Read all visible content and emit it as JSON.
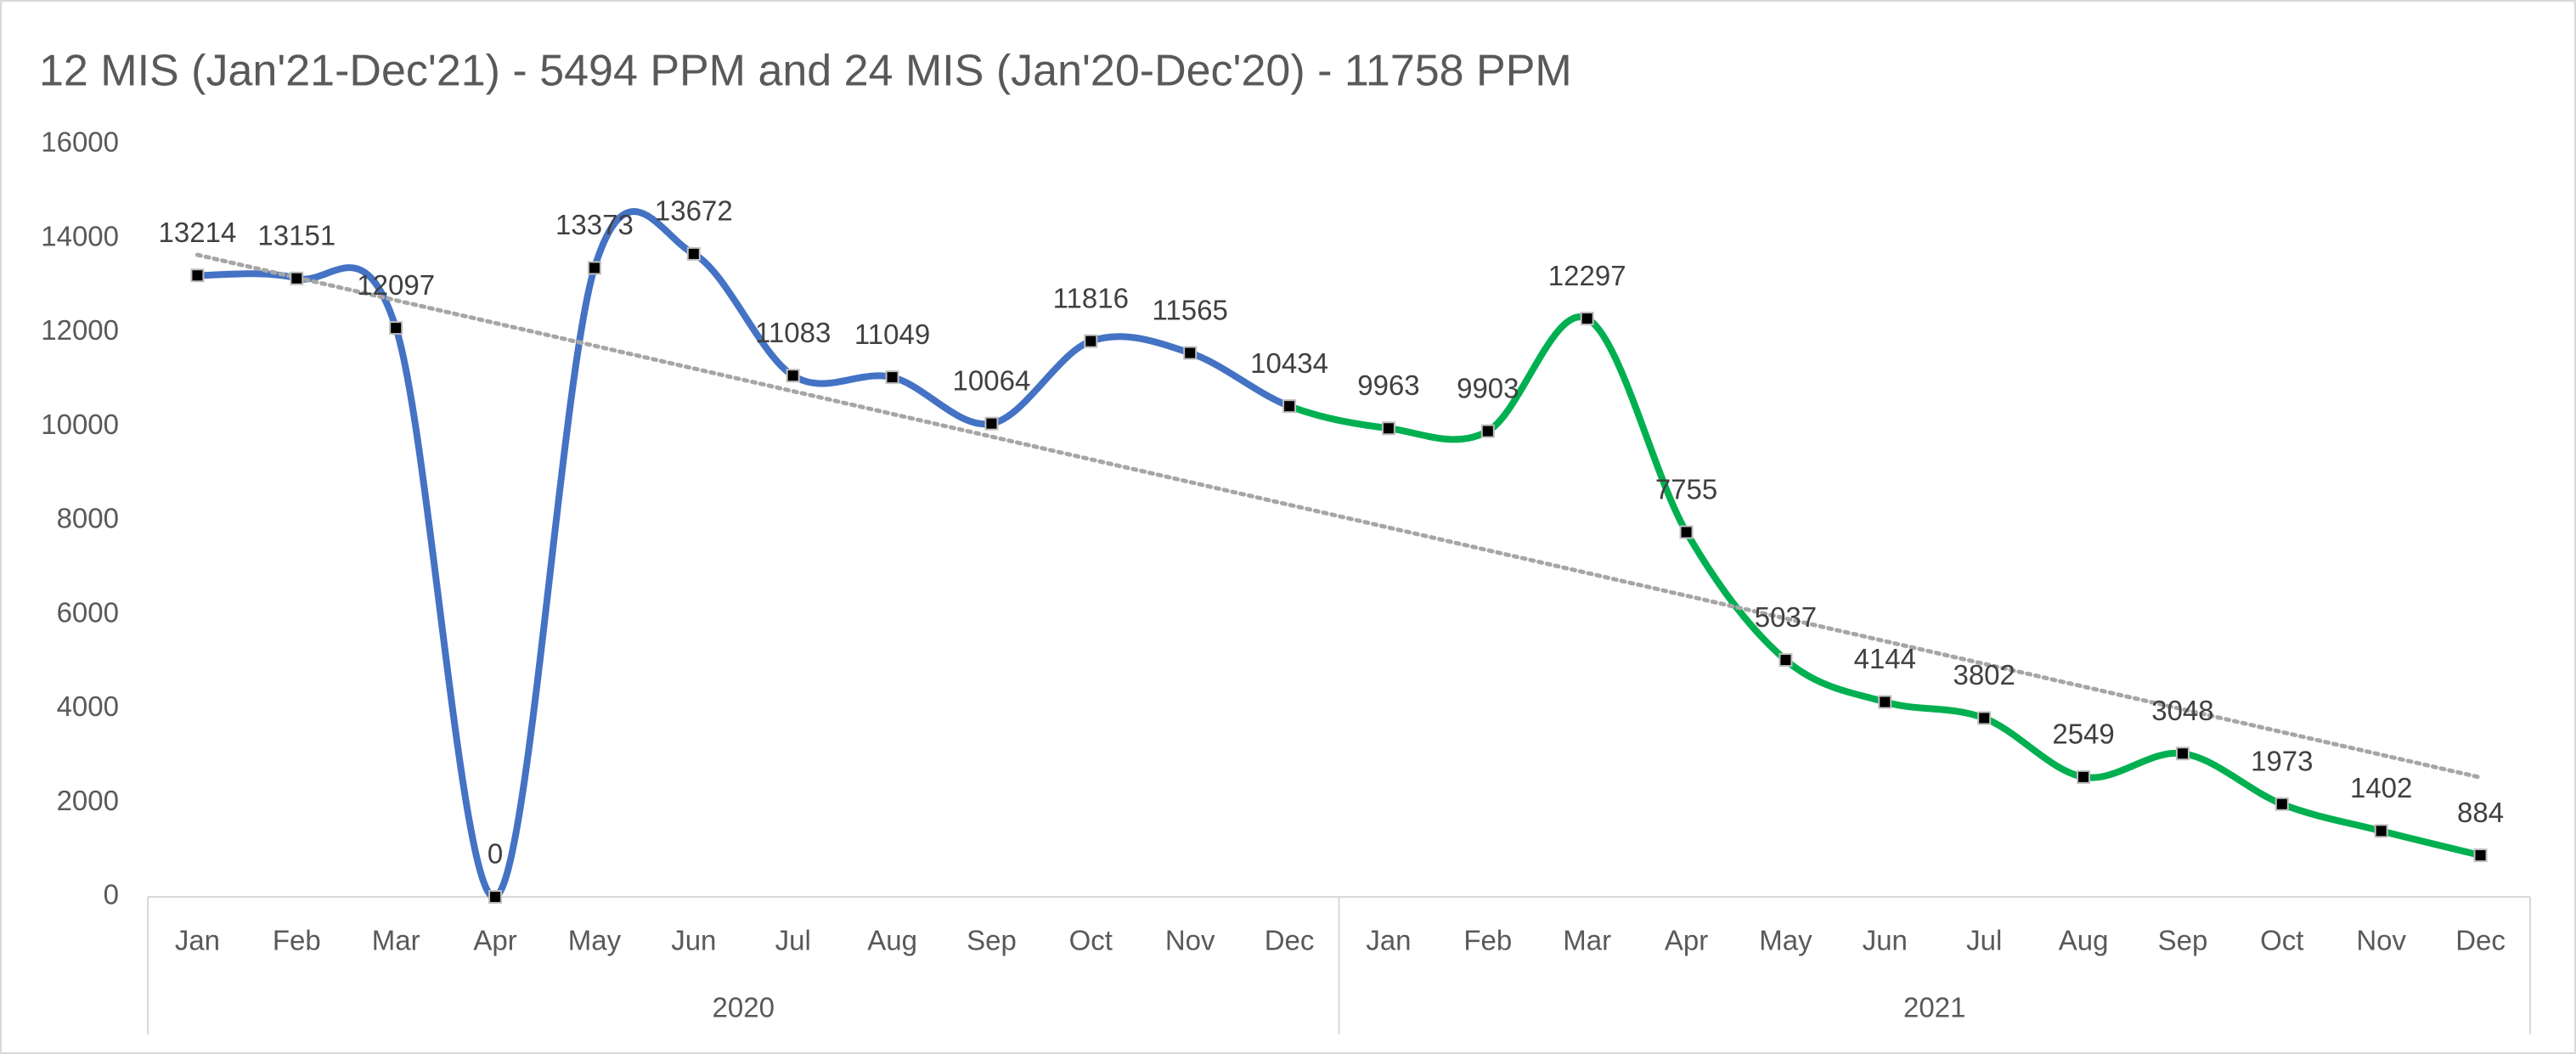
{
  "chart_data": {
    "type": "line",
    "title": "12 MIS (Jan'21-Dec'21) - 5494 PPM and 24 MIS (Jan'20-Dec'20) - 11758 PPM",
    "categories": [
      "Jan",
      "Feb",
      "Mar",
      "Apr",
      "May",
      "Jun",
      "Jul",
      "Aug",
      "Sep",
      "Oct",
      "Nov",
      "Dec"
    ],
    "series": [
      {
        "name": "2020",
        "color": "#4472c4",
        "values": [
          13214,
          13151,
          12097,
          0,
          13373,
          13672,
          11083,
          11049,
          10064,
          11816,
          11565,
          10434
        ]
      },
      {
        "name": "2021",
        "color": "#00b050",
        "values": [
          9963,
          9903,
          12297,
          7755,
          5037,
          4144,
          3802,
          2549,
          3048,
          1973,
          1402,
          884
        ]
      }
    ],
    "ylim": [
      0,
      16000
    ],
    "yticks": [
      0,
      2000,
      4000,
      6000,
      8000,
      10000,
      12000,
      14000,
      16000
    ],
    "grid": false,
    "smooth": true,
    "trendline": {
      "type": "linear",
      "color": "#a6a6a6"
    }
  }
}
